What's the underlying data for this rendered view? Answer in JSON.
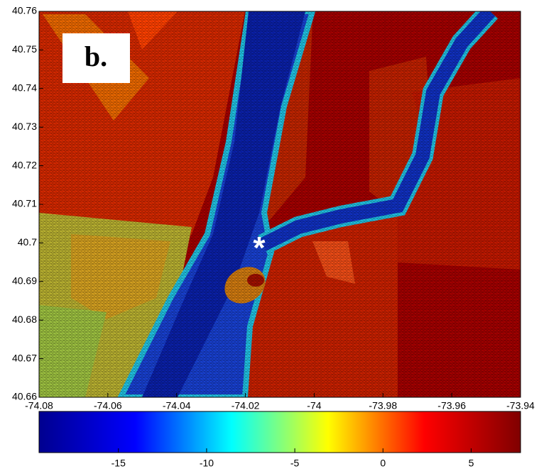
{
  "chart_data": {
    "type": "map",
    "panel_label": "b.",
    "marker": {
      "label": "*",
      "lon": -74.016,
      "lat": 40.7
    },
    "xlim": [
      -74.08,
      -73.94
    ],
    "ylim": [
      40.66,
      40.76
    ],
    "xticks": [
      -74.08,
      -74.06,
      -74.04,
      -74.02,
      -74,
      -73.98,
      -73.96,
      -73.94
    ],
    "yticks": [
      40.66,
      40.67,
      40.68,
      40.69,
      40.7,
      40.71,
      40.72,
      40.73,
      40.74,
      40.75,
      40.76
    ],
    "colorbar": {
      "clim": [
        -19.5,
        7.8
      ],
      "ticks": [
        -15,
        -10,
        -5,
        0,
        5
      ],
      "colormap": "jet"
    }
  }
}
